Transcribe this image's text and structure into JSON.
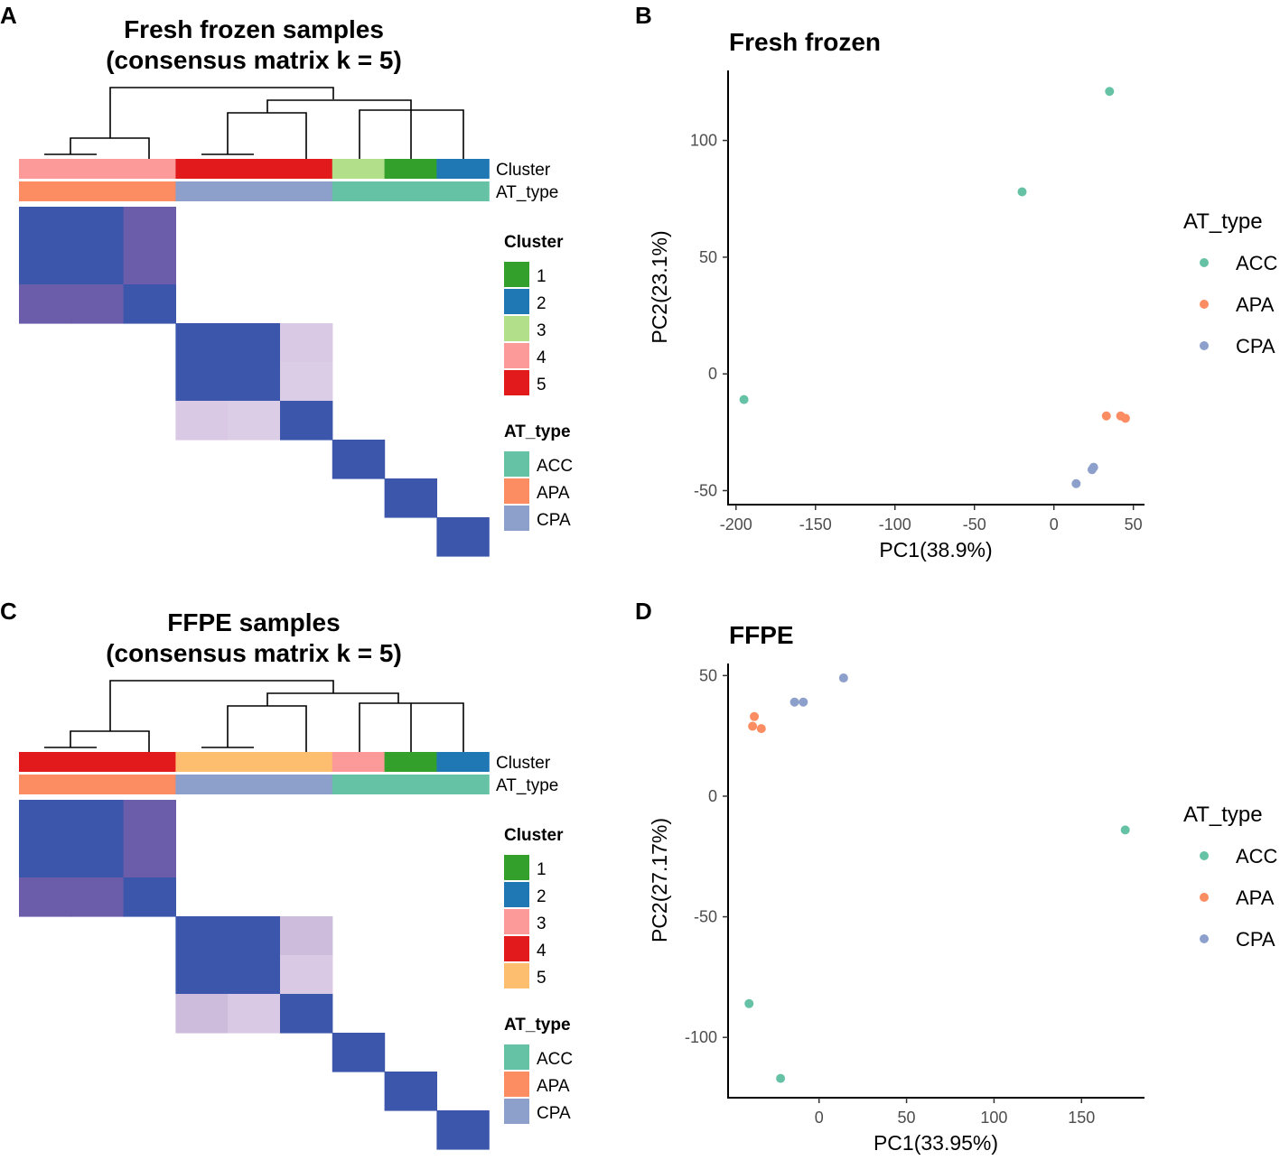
{
  "panels": {
    "a": "A",
    "b": "B",
    "c": "C",
    "d": "D"
  },
  "colors": {
    "ACC": "#66c2a5",
    "APA": "#fc8d62",
    "CPA": "#8da0cb",
    "dark_green": "#33a02c",
    "dark_blue": "#1f78b4",
    "light_green": "#b2df8a",
    "pink": "#fb9a99",
    "red": "#e31a1c",
    "orange": "#fdbf6f",
    "heat_high": "#3b56ab"
  },
  "chart_data": [
    {
      "type": "heatmap",
      "title_line1": "Fresh frozen samples",
      "title_line2": "(consensus matrix k = 5)",
      "annotation_labels": [
        "Cluster",
        "AT_type"
      ],
      "cluster_legend_title": "Cluster",
      "cluster_legend": [
        {
          "label": "1",
          "color": "#33a02c"
        },
        {
          "label": "2",
          "color": "#1f78b4"
        },
        {
          "label": "3",
          "color": "#b2df8a"
        },
        {
          "label": "4",
          "color": "#fb9a99"
        },
        {
          "label": "5",
          "color": "#e31a1c"
        }
      ],
      "type_legend_title": "AT_type",
      "type_legend": [
        {
          "label": "ACC",
          "color": "#66c2a5"
        },
        {
          "label": "APA",
          "color": "#fc8d62"
        },
        {
          "label": "CPA",
          "color": "#8da0cb"
        }
      ],
      "sample_cluster": [
        "4",
        "4",
        "4",
        "5",
        "5",
        "5",
        "3",
        "1",
        "2"
      ],
      "sample_type": [
        "APA",
        "APA",
        "APA",
        "CPA",
        "CPA",
        "CPA",
        "ACC",
        "ACC",
        "ACC"
      ],
      "matrix": [
        [
          1,
          1,
          0.7,
          0,
          0,
          0,
          0,
          0,
          0
        ],
        [
          1,
          1,
          0.7,
          0,
          0,
          0,
          0,
          0,
          0
        ],
        [
          0.7,
          0.7,
          1,
          0,
          0,
          0,
          0,
          0,
          0
        ],
        [
          0,
          0,
          0,
          1,
          1,
          0.15,
          0,
          0,
          0
        ],
        [
          0,
          0,
          0,
          1,
          1,
          0.12,
          0,
          0,
          0
        ],
        [
          0,
          0,
          0,
          0.15,
          0.12,
          1,
          0,
          0,
          0
        ],
        [
          0,
          0,
          0,
          0,
          0,
          0,
          1,
          0,
          0
        ],
        [
          0,
          0,
          0,
          0,
          0,
          0,
          0,
          1,
          0
        ],
        [
          0,
          0,
          0,
          0,
          0,
          0,
          0,
          0,
          1
        ]
      ]
    },
    {
      "type": "scatter",
      "title": "Fresh frozen",
      "xlabel": "PC1(38.9%)",
      "ylabel": "PC2(23.1%)",
      "xlim": [
        -205,
        57
      ],
      "ylim": [
        -56,
        130
      ],
      "xticks": [
        -200,
        -150,
        -100,
        -50,
        0,
        50
      ],
      "yticks": [
        -50,
        0,
        50,
        100
      ],
      "legend_title": "AT_type",
      "legend": [
        "ACC",
        "APA",
        "CPA"
      ],
      "points": [
        {
          "x": 35,
          "y": 121,
          "group": "ACC"
        },
        {
          "x": -20,
          "y": 78,
          "group": "ACC"
        },
        {
          "x": -195,
          "y": -11,
          "group": "ACC"
        },
        {
          "x": 33,
          "y": -18,
          "group": "APA"
        },
        {
          "x": 42,
          "y": -18,
          "group": "APA"
        },
        {
          "x": 45,
          "y": -19,
          "group": "APA"
        },
        {
          "x": 25,
          "y": -40,
          "group": "CPA"
        },
        {
          "x": 24,
          "y": -41,
          "group": "CPA"
        },
        {
          "x": 14,
          "y": -47,
          "group": "CPA"
        }
      ]
    },
    {
      "type": "heatmap",
      "title_line1": "FFPE samples",
      "title_line2": "(consensus matrix k = 5)",
      "annotation_labels": [
        "Cluster",
        "AT_type"
      ],
      "cluster_legend_title": "Cluster",
      "cluster_legend": [
        {
          "label": "1",
          "color": "#33a02c"
        },
        {
          "label": "2",
          "color": "#1f78b4"
        },
        {
          "label": "3",
          "color": "#fb9a99"
        },
        {
          "label": "4",
          "color": "#e31a1c"
        },
        {
          "label": "5",
          "color": "#fdbf6f"
        }
      ],
      "type_legend_title": "AT_type",
      "type_legend": [
        {
          "label": "ACC",
          "color": "#66c2a5"
        },
        {
          "label": "APA",
          "color": "#fc8d62"
        },
        {
          "label": "CPA",
          "color": "#8da0cb"
        }
      ],
      "sample_cluster": [
        "4",
        "4",
        "4",
        "5",
        "5",
        "5",
        "3",
        "1",
        "2"
      ],
      "sample_type": [
        "APA",
        "APA",
        "APA",
        "CPA",
        "CPA",
        "CPA",
        "ACC",
        "ACC",
        "ACC"
      ],
      "matrix": [
        [
          1,
          1,
          0.7,
          0,
          0,
          0,
          0,
          0,
          0
        ],
        [
          1,
          1,
          0.7,
          0,
          0,
          0,
          0,
          0,
          0
        ],
        [
          0.7,
          0.7,
          1,
          0,
          0,
          0,
          0,
          0,
          0
        ],
        [
          0,
          0,
          0,
          1,
          1,
          0.25,
          0,
          0,
          0
        ],
        [
          0,
          0,
          0,
          1,
          1,
          0.15,
          0,
          0,
          0
        ],
        [
          0,
          0,
          0,
          0.25,
          0.15,
          1,
          0,
          0,
          0
        ],
        [
          0,
          0,
          0,
          0,
          0,
          0,
          1,
          0,
          0
        ],
        [
          0,
          0,
          0,
          0,
          0,
          0,
          0,
          1,
          0
        ],
        [
          0,
          0,
          0,
          0,
          0,
          0,
          0,
          0,
          1
        ]
      ]
    },
    {
      "type": "scatter",
      "title": "FFPE",
      "xlabel": "PC1(33.95%)",
      "ylabel": "PC2(27.17%)",
      "xlim": [
        -52,
        186
      ],
      "ylim": [
        -125,
        55
      ],
      "xticks": [
        0,
        50,
        100,
        150
      ],
      "yticks": [
        -100,
        -50,
        0,
        50
      ],
      "legend_title": "AT_type",
      "legend": [
        "ACC",
        "APA",
        "CPA"
      ],
      "points": [
        {
          "x": 175,
          "y": -14,
          "group": "ACC"
        },
        {
          "x": -40,
          "y": -86,
          "group": "ACC"
        },
        {
          "x": -22,
          "y": -117,
          "group": "ACC"
        },
        {
          "x": -37,
          "y": 33,
          "group": "APA"
        },
        {
          "x": -38,
          "y": 29,
          "group": "APA"
        },
        {
          "x": -33,
          "y": 28,
          "group": "APA"
        },
        {
          "x": -14,
          "y": 39,
          "group": "CPA"
        },
        {
          "x": -9,
          "y": 39,
          "group": "CPA"
        },
        {
          "x": 14,
          "y": 49,
          "group": "CPA"
        }
      ]
    }
  ]
}
